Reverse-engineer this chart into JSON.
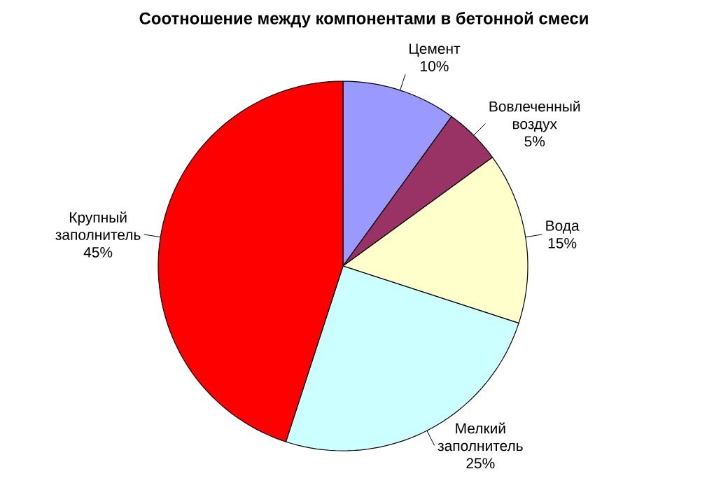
{
  "chart_data": {
    "type": "pie",
    "title": "Соотношение между компонентами в бетонной смеси",
    "categories": [
      "Цемент",
      "Вовлеченный воздух",
      "Вода",
      "Мелкий заполнитель",
      "Крупный заполнитель"
    ],
    "values": [
      10,
      5,
      15,
      25,
      45
    ],
    "value_labels": [
      "10%",
      "5%",
      "15%",
      "25%",
      "45%"
    ],
    "colors": [
      "#9999ff",
      "#993366",
      "#ffffcc",
      "#ccffff",
      "#ff0000"
    ]
  }
}
